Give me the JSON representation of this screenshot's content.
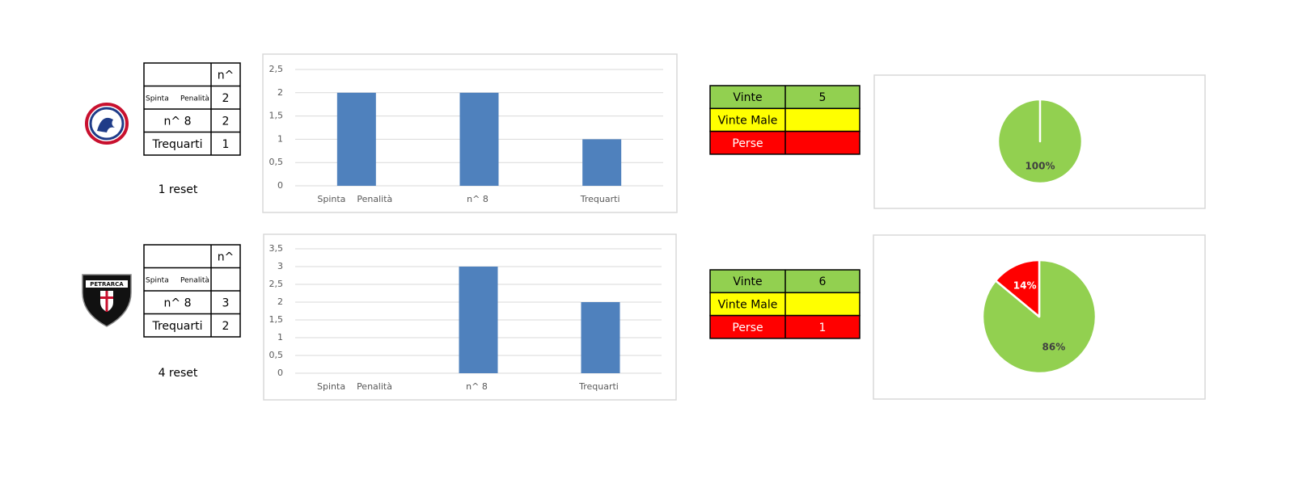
{
  "teams": [
    {
      "stats": {
        "header": "n^",
        "rows": [
          {
            "label": "Spinta     Penalità",
            "value": 2
          },
          {
            "label": "n^ 8",
            "value": 2
          },
          {
            "label": "Trequarti",
            "value": 1
          }
        ]
      },
      "reset": "1 reset",
      "results": [
        {
          "label": "Vinte",
          "value": 5,
          "color": "#92d050"
        },
        {
          "label": "Vinte Male",
          "color": "#ffff00"
        },
        {
          "label": "Perse",
          "color": "#ff0000"
        }
      ]
    },
    {
      "stats": {
        "header": "n^",
        "rows": [
          {
            "label": "Spinta     Penalità"
          },
          {
            "label": "n^ 8",
            "value": 3
          },
          {
            "label": "Trequarti",
            "value": 2
          }
        ]
      },
      "reset": "4 reset",
      "results": [
        {
          "label": "Vinte",
          "value": 6,
          "color": "#92d050"
        },
        {
          "label": "Vinte Male",
          "color": "#ffff00"
        },
        {
          "label": "Perse",
          "value": 1,
          "color": "#ff0000"
        }
      ]
    }
  ],
  "chart_data": [
    {
      "type": "bar",
      "categories": [
        "Spinta    Penalità",
        "n^ 8",
        "Trequarti"
      ],
      "values": [
        2,
        2,
        1
      ],
      "color": "#4f81bd",
      "ylim": [
        0,
        2.5
      ],
      "yticks": [
        0,
        {
          "value": 0.5,
          "label": "0,5"
        },
        1,
        {
          "value": 1.5,
          "label": "1,5"
        },
        2,
        {
          "value": 2.5,
          "label": "2,5"
        }
      ],
      "grid": true
    },
    {
      "type": "pie",
      "values": [
        100
      ],
      "value_labels": [
        "100%"
      ],
      "colors": [
        "#92d050"
      ],
      "label_colors": [
        "#404040"
      ]
    },
    {
      "type": "bar",
      "categories": [
        "Spinta    Penalità",
        "n^ 8",
        "Trequarti"
      ],
      "values": [
        null,
        3,
        2
      ],
      "color": "#4f81bd",
      "ylim": [
        0,
        3.5
      ],
      "yticks": [
        0,
        {
          "value": 0.5,
          "label": "0,5"
        },
        1,
        {
          "value": 1.5,
          "label": "1,5"
        },
        2,
        {
          "value": 2.5,
          "label": "2,5"
        },
        3,
        {
          "value": 3.5,
          "label": "3,5"
        }
      ],
      "grid": true
    },
    {
      "type": "pie",
      "values": [
        86,
        14
      ],
      "value_labels": [
        "86%",
        "14%"
      ],
      "colors": [
        "#92d050",
        "#ff0000"
      ],
      "label_colors": [
        "#404040",
        "#ffffff"
      ]
    }
  ]
}
